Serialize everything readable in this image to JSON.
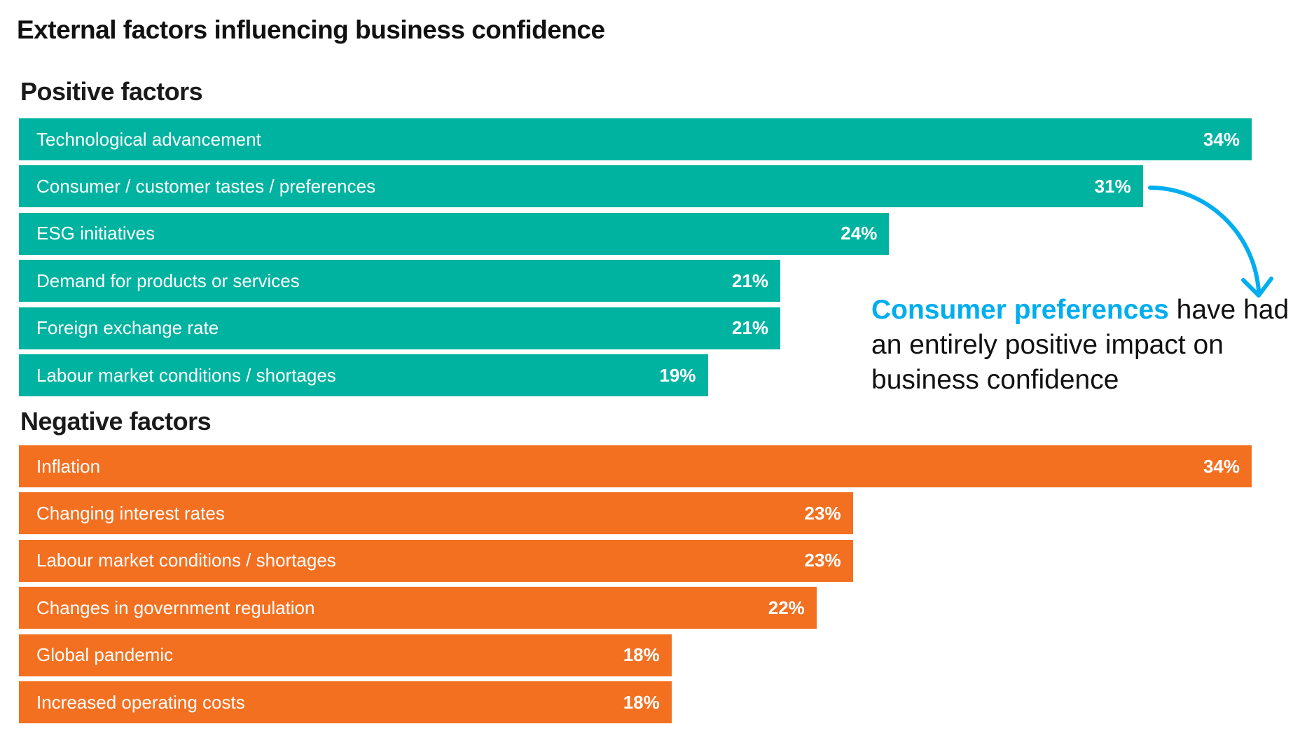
{
  "chart_data": {
    "type": "bar",
    "orientation": "horizontal",
    "title": "External factors influencing business confidence",
    "unit": "%",
    "groups": [
      {
        "name": "Positive factors",
        "color": "#00b3a0",
        "categories": [
          "Technological advancement",
          "Consumer / customer tastes / preferences",
          "ESG initiatives",
          "Demand for products or services",
          "Foreign exchange rate",
          "Labour market conditions / shortages"
        ],
        "values": [
          34,
          31,
          24,
          21,
          21,
          19
        ],
        "labels": [
          "34%",
          "31%",
          "24%",
          "21%",
          "21%",
          "19%"
        ]
      },
      {
        "name": "Negative factors",
        "color": "#f37021",
        "categories": [
          "Inflation",
          "Changing interest rates",
          "Labour market conditions / shortages",
          "Changes in government regulation",
          "Global pandemic",
          "Increased operating costs"
        ],
        "values": [
          34,
          23,
          23,
          22,
          18,
          18
        ],
        "labels": [
          "34%",
          "23%",
          "23%",
          "22%",
          "18%",
          "18%"
        ]
      }
    ],
    "annotation": {
      "highlight": "Consumer preferences",
      "text": " have had an entirely positive impact on business confidence",
      "color": "#00aeef"
    }
  }
}
